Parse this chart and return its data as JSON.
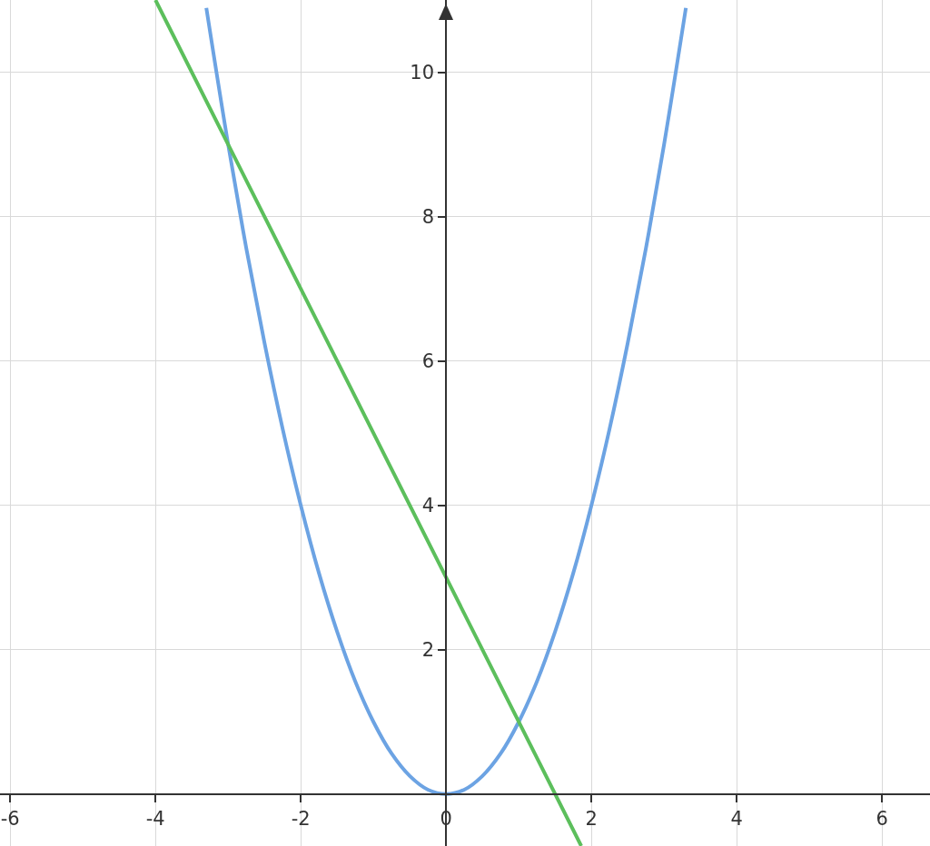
{
  "chart_data": {
    "type": "line",
    "xlim": [
      -6.14,
      6.66
    ],
    "ylim": [
      -0.72,
      11
    ],
    "xticks": [
      -6,
      -4,
      -2,
      0,
      2,
      4,
      6
    ],
    "yticks": [
      2,
      4,
      6,
      8,
      10
    ],
    "grid": true,
    "marker": "none",
    "line_style": "solid",
    "series": [
      {
        "color": "#6ca3e3",
        "x": [
          -3.3,
          -3,
          -2.75,
          -2.5,
          -2.25,
          -2,
          -1.75,
          -1.5,
          -1.25,
          -1,
          -0.75,
          -0.5,
          -0.25,
          0,
          0.25,
          0.5,
          0.75,
          1,
          1.25,
          1.5,
          1.75,
          2,
          2.25,
          2.5,
          2.75,
          3,
          3.3
        ],
        "values": [
          10.89,
          9,
          7.56,
          6.25,
          5.06,
          4,
          3.06,
          2.25,
          1.56,
          1,
          0.56,
          0.25,
          0.06,
          0,
          0.06,
          0.25,
          0.56,
          1,
          1.56,
          2.25,
          3.06,
          4,
          5.06,
          6.25,
          7.56,
          9,
          10.89
        ]
      },
      {
        "color": "#5cbf5c",
        "x": [
          -4,
          -3,
          -2,
          0,
          1,
          1.86
        ],
        "values": [
          11,
          9,
          7,
          3,
          1,
          -0.72
        ]
      }
    ]
  }
}
